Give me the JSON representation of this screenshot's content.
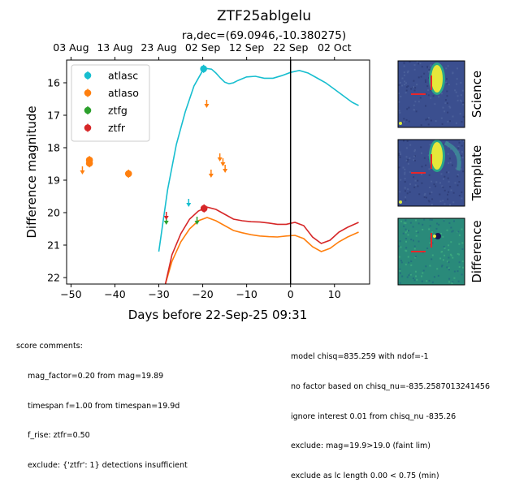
{
  "chart_data": {
    "type": "scatter",
    "title": "ZTF25ablgelu",
    "subtitle": "ra,dec=(69.0946,-10.380275)",
    "xlabel": "Days before 22-Sep-25 09:31",
    "ylabel": "Difference magnitude",
    "xlim": [
      -51,
      18
    ],
    "ylim": [
      22.2,
      15.3
    ],
    "y_inverted": true,
    "x_ticks": [
      -50,
      -40,
      -30,
      -20,
      -10,
      0,
      10
    ],
    "y_ticks": [
      16,
      17,
      18,
      19,
      20,
      21,
      22
    ],
    "top_axis_ticks": [
      {
        "x": -50,
        "label": "03 Aug"
      },
      {
        "x": -40,
        "label": "13 Aug"
      },
      {
        "x": -30,
        "label": "23 Aug"
      },
      {
        "x": -20,
        "label": "02 Sep"
      },
      {
        "x": -10,
        "label": "12 Sep"
      },
      {
        "x": 0,
        "label": "22 Sep"
      },
      {
        "x": 10,
        "label": "02 Oct"
      }
    ],
    "reference_line_x": 0,
    "legend_position": "upper-left",
    "series": [
      {
        "name": "atlasc",
        "color": "#17becf",
        "detections": [
          {
            "x": -19.8,
            "y": 15.57
          }
        ],
        "upper_limits": [
          {
            "x": -23.2,
            "y": 19.7
          }
        ],
        "model": [
          [
            -30,
            21.2
          ],
          [
            -28,
            19.3
          ],
          [
            -26,
            17.9
          ],
          [
            -24,
            16.9
          ],
          [
            -22,
            16.1
          ],
          [
            -20,
            15.62
          ],
          [
            -19,
            15.56
          ],
          [
            -18,
            15.58
          ],
          [
            -17,
            15.7
          ],
          [
            -16,
            15.85
          ],
          [
            -15,
            15.98
          ],
          [
            -14,
            16.03
          ],
          [
            -13,
            16.0
          ],
          [
            -12,
            15.93
          ],
          [
            -10,
            15.82
          ],
          [
            -8,
            15.8
          ],
          [
            -6,
            15.86
          ],
          [
            -4,
            15.86
          ],
          [
            -2,
            15.78
          ],
          [
            0,
            15.68
          ],
          [
            2,
            15.62
          ],
          [
            4,
            15.7
          ],
          [
            6,
            15.85
          ],
          [
            8,
            16.0
          ],
          [
            10,
            16.2
          ],
          [
            12,
            16.4
          ],
          [
            14,
            16.6
          ],
          [
            15.5,
            16.7
          ]
        ]
      },
      {
        "name": "atlaso",
        "color": "#ff7f0e",
        "detections": [
          {
            "x": -45.8,
            "y": 18.38
          },
          {
            "x": -45.8,
            "y": 18.48
          },
          {
            "x": -36.9,
            "y": 18.8
          }
        ],
        "upper_limits": [
          {
            "x": -47.4,
            "y": 18.7
          },
          {
            "x": -19.1,
            "y": 16.65
          },
          {
            "x": -18.1,
            "y": 18.8
          },
          {
            "x": -16.1,
            "y": 18.3
          },
          {
            "x": -15.4,
            "y": 18.45
          },
          {
            "x": -14.9,
            "y": 18.65
          }
        ],
        "model": [
          [
            -28.5,
            22.2
          ],
          [
            -27,
            21.5
          ],
          [
            -25,
            20.9
          ],
          [
            -23,
            20.5
          ],
          [
            -21,
            20.25
          ],
          [
            -19,
            20.15
          ],
          [
            -17,
            20.25
          ],
          [
            -15,
            20.4
          ],
          [
            -13,
            20.55
          ],
          [
            -11,
            20.62
          ],
          [
            -9,
            20.68
          ],
          [
            -7,
            20.72
          ],
          [
            -5,
            20.74
          ],
          [
            -3,
            20.75
          ],
          [
            -1,
            20.72
          ],
          [
            1,
            20.7
          ],
          [
            3,
            20.8
          ],
          [
            5,
            21.05
          ],
          [
            7,
            21.2
          ],
          [
            9,
            21.1
          ],
          [
            11,
            20.9
          ],
          [
            13,
            20.75
          ],
          [
            15.5,
            20.6
          ]
        ]
      },
      {
        "name": "ztfg",
        "color": "#2ca02c",
        "detections": [],
        "upper_limits": [
          {
            "x": -28.3,
            "y": 20.25
          },
          {
            "x": -21.3,
            "y": 20.25
          }
        ],
        "model": []
      },
      {
        "name": "ztfr",
        "color": "#d62728",
        "detections": [
          {
            "x": -19.7,
            "y": 19.87
          }
        ],
        "upper_limits": [
          {
            "x": -28.3,
            "y": 20.1
          }
        ],
        "model": [
          [
            -28.5,
            22.2
          ],
          [
            -27,
            21.3
          ],
          [
            -25,
            20.65
          ],
          [
            -23,
            20.2
          ],
          [
            -21,
            19.95
          ],
          [
            -19,
            19.83
          ],
          [
            -17,
            19.9
          ],
          [
            -15,
            20.05
          ],
          [
            -13,
            20.2
          ],
          [
            -11,
            20.25
          ],
          [
            -9,
            20.28
          ],
          [
            -7,
            20.29
          ],
          [
            -5,
            20.32
          ],
          [
            -3,
            20.36
          ],
          [
            -1,
            20.36
          ],
          [
            1,
            20.3
          ],
          [
            3,
            20.4
          ],
          [
            5,
            20.75
          ],
          [
            7,
            20.95
          ],
          [
            9,
            20.85
          ],
          [
            11,
            20.6
          ],
          [
            13,
            20.45
          ],
          [
            15.5,
            20.3
          ]
        ]
      }
    ]
  },
  "thumbnails": [
    {
      "label": "Science",
      "kind": "science"
    },
    {
      "label": "Template",
      "kind": "template"
    },
    {
      "label": "Difference",
      "kind": "difference"
    }
  ],
  "score_comments": {
    "heading": "score comments:",
    "left": [
      "mag_factor=0.20 from mag=19.89",
      "timespan f=1.00 from timespan=19.9d",
      "f_rise: ztfr=0.50",
      "exclude: {'ztfr': 1} detections insufficient"
    ],
    "right": [
      "model chisq=835.259 with ndof=-1",
      "no factor based on chisq_nu=-835.2587013241456",
      "ignore interest 0.01 from chisq_nu -835.26",
      "exclude: mag=19.9>19.0 (faint lim)",
      "exclude as lc length 0.00 < 0.75 (min)"
    ]
  }
}
